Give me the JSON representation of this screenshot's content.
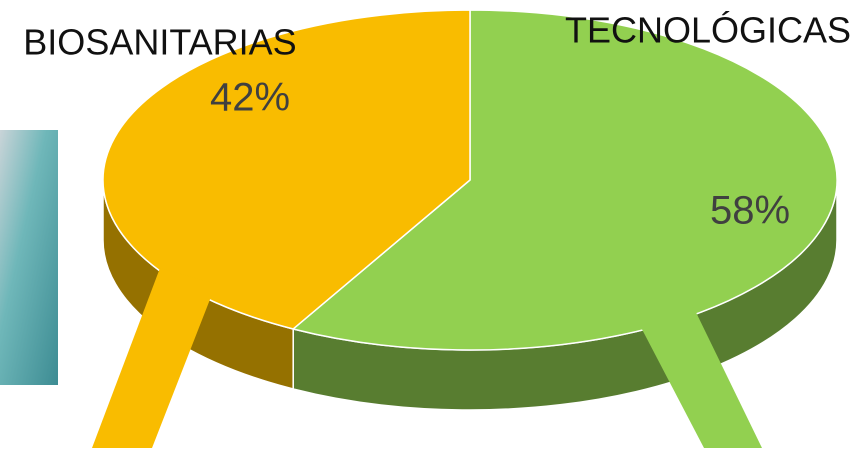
{
  "chart_data": {
    "type": "pie3d",
    "categories": [
      "BIOSANITARIAS",
      "TECNOLÓGICAS"
    ],
    "values": [
      42,
      58
    ],
    "value_labels": [
      "42%",
      "58%"
    ],
    "colors": [
      "#F9BC00",
      "#92D050"
    ]
  }
}
